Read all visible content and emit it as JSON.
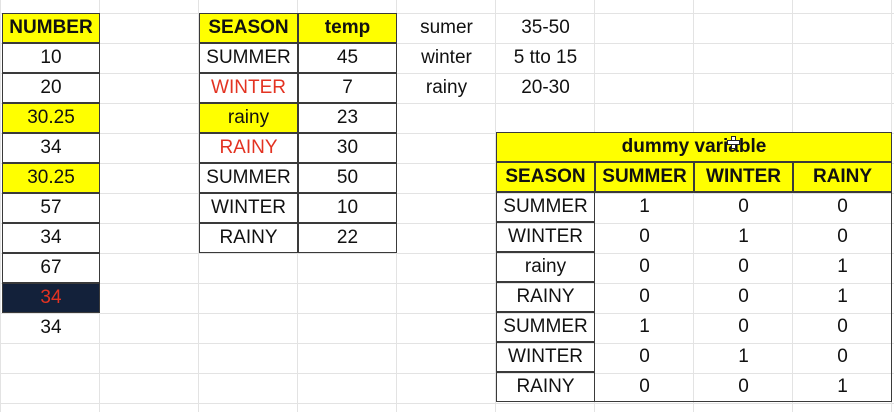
{
  "number_column": {
    "header": "NUMBER",
    "values": [
      "10",
      "20",
      "30.25",
      "34",
      "30.25",
      "57",
      "34",
      "67",
      "34",
      "34"
    ]
  },
  "season_temp_table": {
    "headers": [
      "SEASON",
      "temp"
    ],
    "rows": [
      [
        "SUMMER",
        "45"
      ],
      [
        "WINTER",
        "7"
      ],
      [
        "rainy",
        "23"
      ],
      [
        "RAINY",
        "30"
      ],
      [
        "SUMMER",
        "50"
      ],
      [
        "WINTER",
        "10"
      ],
      [
        "RAINY",
        "22"
      ]
    ]
  },
  "ranges": {
    "rows": [
      [
        "sumer",
        "35-50"
      ],
      [
        "winter",
        "5 tto 15"
      ],
      [
        "rainy",
        "20-30"
      ]
    ]
  },
  "dummy_table": {
    "title": "dummy variable",
    "headers": [
      "SEASON",
      "SUMMER",
      "WINTER",
      "RAINY"
    ],
    "rows": [
      [
        "SUMMER",
        "1",
        "0",
        "0"
      ],
      [
        "WINTER",
        "0",
        "1",
        "0"
      ],
      [
        "rainy",
        "0",
        "0",
        "1"
      ],
      [
        "RAINY",
        "0",
        "0",
        "1"
      ],
      [
        "SUMMER",
        "1",
        "0",
        "0"
      ],
      [
        "WINTER",
        "0",
        "1",
        "0"
      ],
      [
        "RAINY",
        "0",
        "0",
        "1"
      ]
    ]
  },
  "colors": {
    "highlight": "#ffff00",
    "red_text": "#e33322",
    "dark_fill": "#13213a"
  }
}
